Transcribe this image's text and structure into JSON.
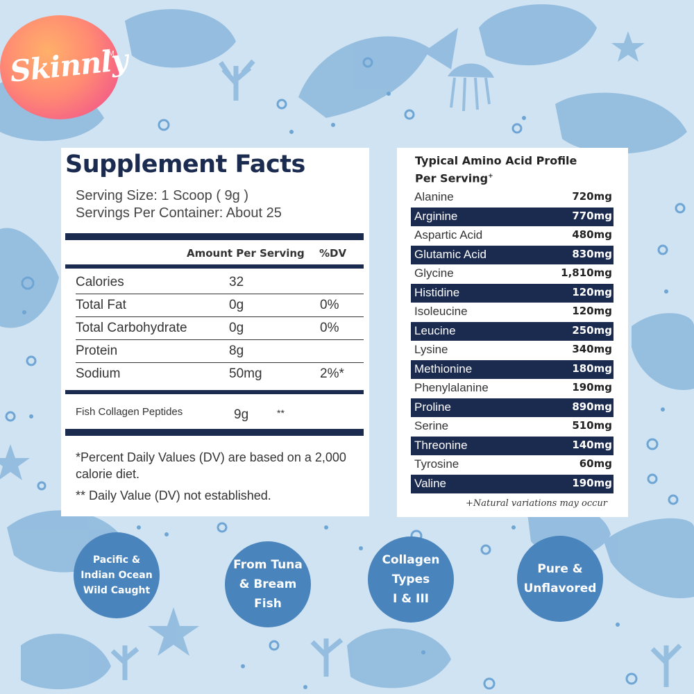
{
  "brand": {
    "name": "Skinnly",
    "tm": "TM"
  },
  "facts": {
    "title": "Supplement Facts",
    "serving_size": "Serving Size: 1 Scoop ( 9g )",
    "servings_per_container": "Servings Per Container: About 25",
    "col_amount": "Amount Per Serving",
    "col_dv": "%DV",
    "rows": [
      {
        "name": "Calories",
        "amount": "32",
        "dv": ""
      },
      {
        "name": "Total Fat",
        "amount": "0g",
        "dv": "0%"
      },
      {
        "name": "Total Carbohydrate",
        "amount": "0g",
        "dv": "0%"
      },
      {
        "name": "Protein",
        "amount": "8g",
        "dv": ""
      },
      {
        "name": "Sodium",
        "amount": "50mg",
        "dv": "2%*"
      }
    ],
    "collagen": {
      "name": "Fish Collagen Peptides",
      "amount": "9g",
      "dv": "**"
    },
    "footnote_1": "*Percent Daily Values (DV) are based on a 2,000 calorie diet.",
    "footnote_2": "** Daily Value (DV) not established."
  },
  "amino": {
    "title_line1": "Typical Amino Acid Profile",
    "title_line2": "Per Serving",
    "title_mark": "+",
    "rows": [
      {
        "name": "Alanine",
        "value": "720mg"
      },
      {
        "name": "Arginine",
        "value": "770mg"
      },
      {
        "name": "Aspartic Acid",
        "value": "480mg"
      },
      {
        "name": "Glutamic Acid",
        "value": "830mg"
      },
      {
        "name": "Glycine",
        "value": "1,810mg"
      },
      {
        "name": "Histidine",
        "value": "120mg"
      },
      {
        "name": "Isoleucine",
        "value": "120mg"
      },
      {
        "name": "Leucine",
        "value": "250mg"
      },
      {
        "name": "Lysine",
        "value": "340mg"
      },
      {
        "name": "Methionine",
        "value": "180mg"
      },
      {
        "name": "Phenylalanine",
        "value": "190mg"
      },
      {
        "name": "Proline",
        "value": "890mg"
      },
      {
        "name": "Serine",
        "value": "510mg"
      },
      {
        "name": "Threonine",
        "value": "140mg"
      },
      {
        "name": "Tyrosine",
        "value": "60mg"
      },
      {
        "name": "Valine",
        "value": "190mg"
      }
    ],
    "note": "+Natural variations may occur"
  },
  "badges": [
    {
      "text": "Pacific &\nIndian Ocean\nWild Caught"
    },
    {
      "text": "From Tuna\n& Bream\nFish"
    },
    {
      "text": "Collagen\nTypes\nI & III"
    },
    {
      "text": "Pure &\nUnflavored"
    }
  ],
  "colors": {
    "background": "#cfe3f2",
    "navy": "#1b2a4f",
    "badge": "#4a84bd",
    "logo_orange": "#ff9b6e",
    "logo_pink": "#f0568a"
  },
  "decorations": [
    "fish-icon",
    "starfish-icon",
    "coral-icon",
    "bubble-icon",
    "jellyfish-icon"
  ]
}
